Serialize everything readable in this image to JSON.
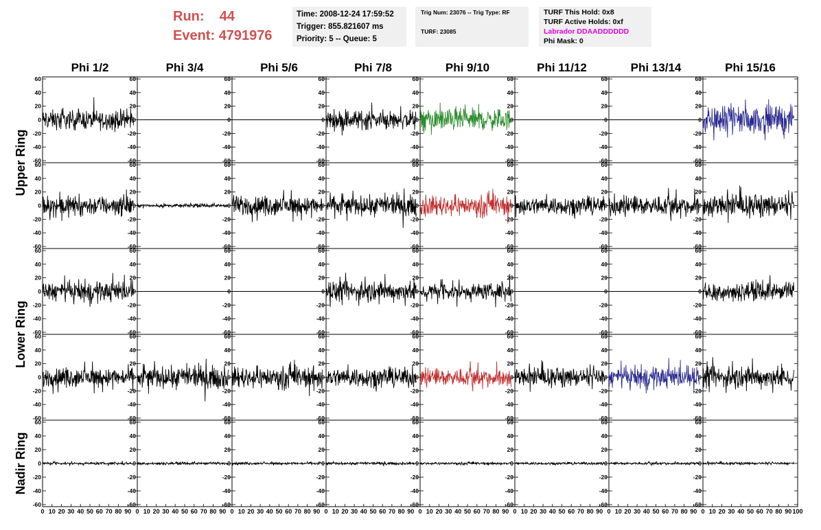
{
  "header": {
    "run_label": "Run:",
    "run_value": "44",
    "event_label": "Event:",
    "event_value": "4791976"
  },
  "info_box_1": {
    "time": "Time: 2008-12-24 17:59:52",
    "trigger": "Trigger: 855.821607 ms",
    "priority": "Priority: 5 -- Queue: 5"
  },
  "info_box_2": {
    "trig": "Trig Num: 23076 -- Trig Type: RF",
    "turf": "TURF: 23085"
  },
  "info_box_3": {
    "this_hold": "TURF This Hold: 0x8",
    "active_holds": "TURF Active Holds: 0xf",
    "labrador": "Labrador DDAADDDDDD",
    "phi_mask": "Phi Mask: 0"
  },
  "chart_data": {
    "type": "line",
    "columns": [
      "Phi 1/2",
      "Phi 3/4",
      "Phi 5/6",
      "Phi 7/8",
      "Phi 9/10",
      "Phi 11/12",
      "Phi 13/14",
      "Phi 15/16"
    ],
    "row_labels": [
      "Upper Ring",
      "Lower Ring",
      "Nadir Ring"
    ],
    "xlim": [
      0,
      100
    ],
    "ylim": [
      -60,
      60
    ],
    "y_ticks": [
      60,
      40,
      20,
      0,
      -20,
      -40,
      -60
    ],
    "x_ticks": [
      0,
      10,
      20,
      30,
      40,
      50,
      60,
      70,
      80,
      90,
      100
    ],
    "samples_per_trace": 260,
    "trace_x_range": [
      0,
      96
    ],
    "colors": {
      "black": "#000000",
      "green": "#2a8a2a",
      "red": "#c03030",
      "blue": "#2a2a90",
      "grid_line": "#000000"
    },
    "note_values": "waveforms: per-panel color and approximate peak amplitude in data units",
    "panels": [
      [
        {
          "color": "black",
          "amp": 24
        },
        {
          "color": "black",
          "amp": 0
        },
        {
          "color": "black",
          "amp": 0
        },
        {
          "color": "black",
          "amp": 24
        },
        {
          "color": "green",
          "amp": 27
        },
        {
          "color": "black",
          "amp": 0
        },
        {
          "color": "black",
          "amp": 0
        },
        {
          "color": "blue",
          "amp": 33
        }
      ],
      [
        {
          "color": "black",
          "amp": 25
        },
        {
          "color": "black",
          "amp": 4
        },
        {
          "color": "black",
          "amp": 24
        },
        {
          "color": "black",
          "amp": 24
        },
        {
          "color": "red",
          "amp": 25
        },
        {
          "color": "black",
          "amp": 22
        },
        {
          "color": "black",
          "amp": 24
        },
        {
          "color": "black",
          "amp": 26
        }
      ],
      [
        {
          "color": "black",
          "amp": 24
        },
        {
          "color": "black",
          "amp": 0
        },
        {
          "color": "black",
          "amp": 0
        },
        {
          "color": "black",
          "amp": 24
        },
        {
          "color": "black",
          "amp": 20
        },
        {
          "color": "black",
          "amp": 0
        },
        {
          "color": "black",
          "amp": 0
        },
        {
          "color": "black",
          "amp": 22
        }
      ],
      [
        {
          "color": "black",
          "amp": 24
        },
        {
          "color": "black",
          "amp": 26
        },
        {
          "color": "black",
          "amp": 26
        },
        {
          "color": "black",
          "amp": 24
        },
        {
          "color": "red",
          "amp": 22
        },
        {
          "color": "black",
          "amp": 22
        },
        {
          "color": "blue",
          "amp": 25
        },
        {
          "color": "black",
          "amp": 26
        }
      ],
      [
        {
          "color": "black",
          "amp": 3
        },
        {
          "color": "black",
          "amp": 3
        },
        {
          "color": "black",
          "amp": 3
        },
        {
          "color": "black",
          "amp": 3
        },
        {
          "color": "black",
          "amp": 3
        },
        {
          "color": "black",
          "amp": 3
        },
        {
          "color": "black",
          "amp": 3
        },
        {
          "color": "black",
          "amp": 3
        }
      ]
    ]
  }
}
